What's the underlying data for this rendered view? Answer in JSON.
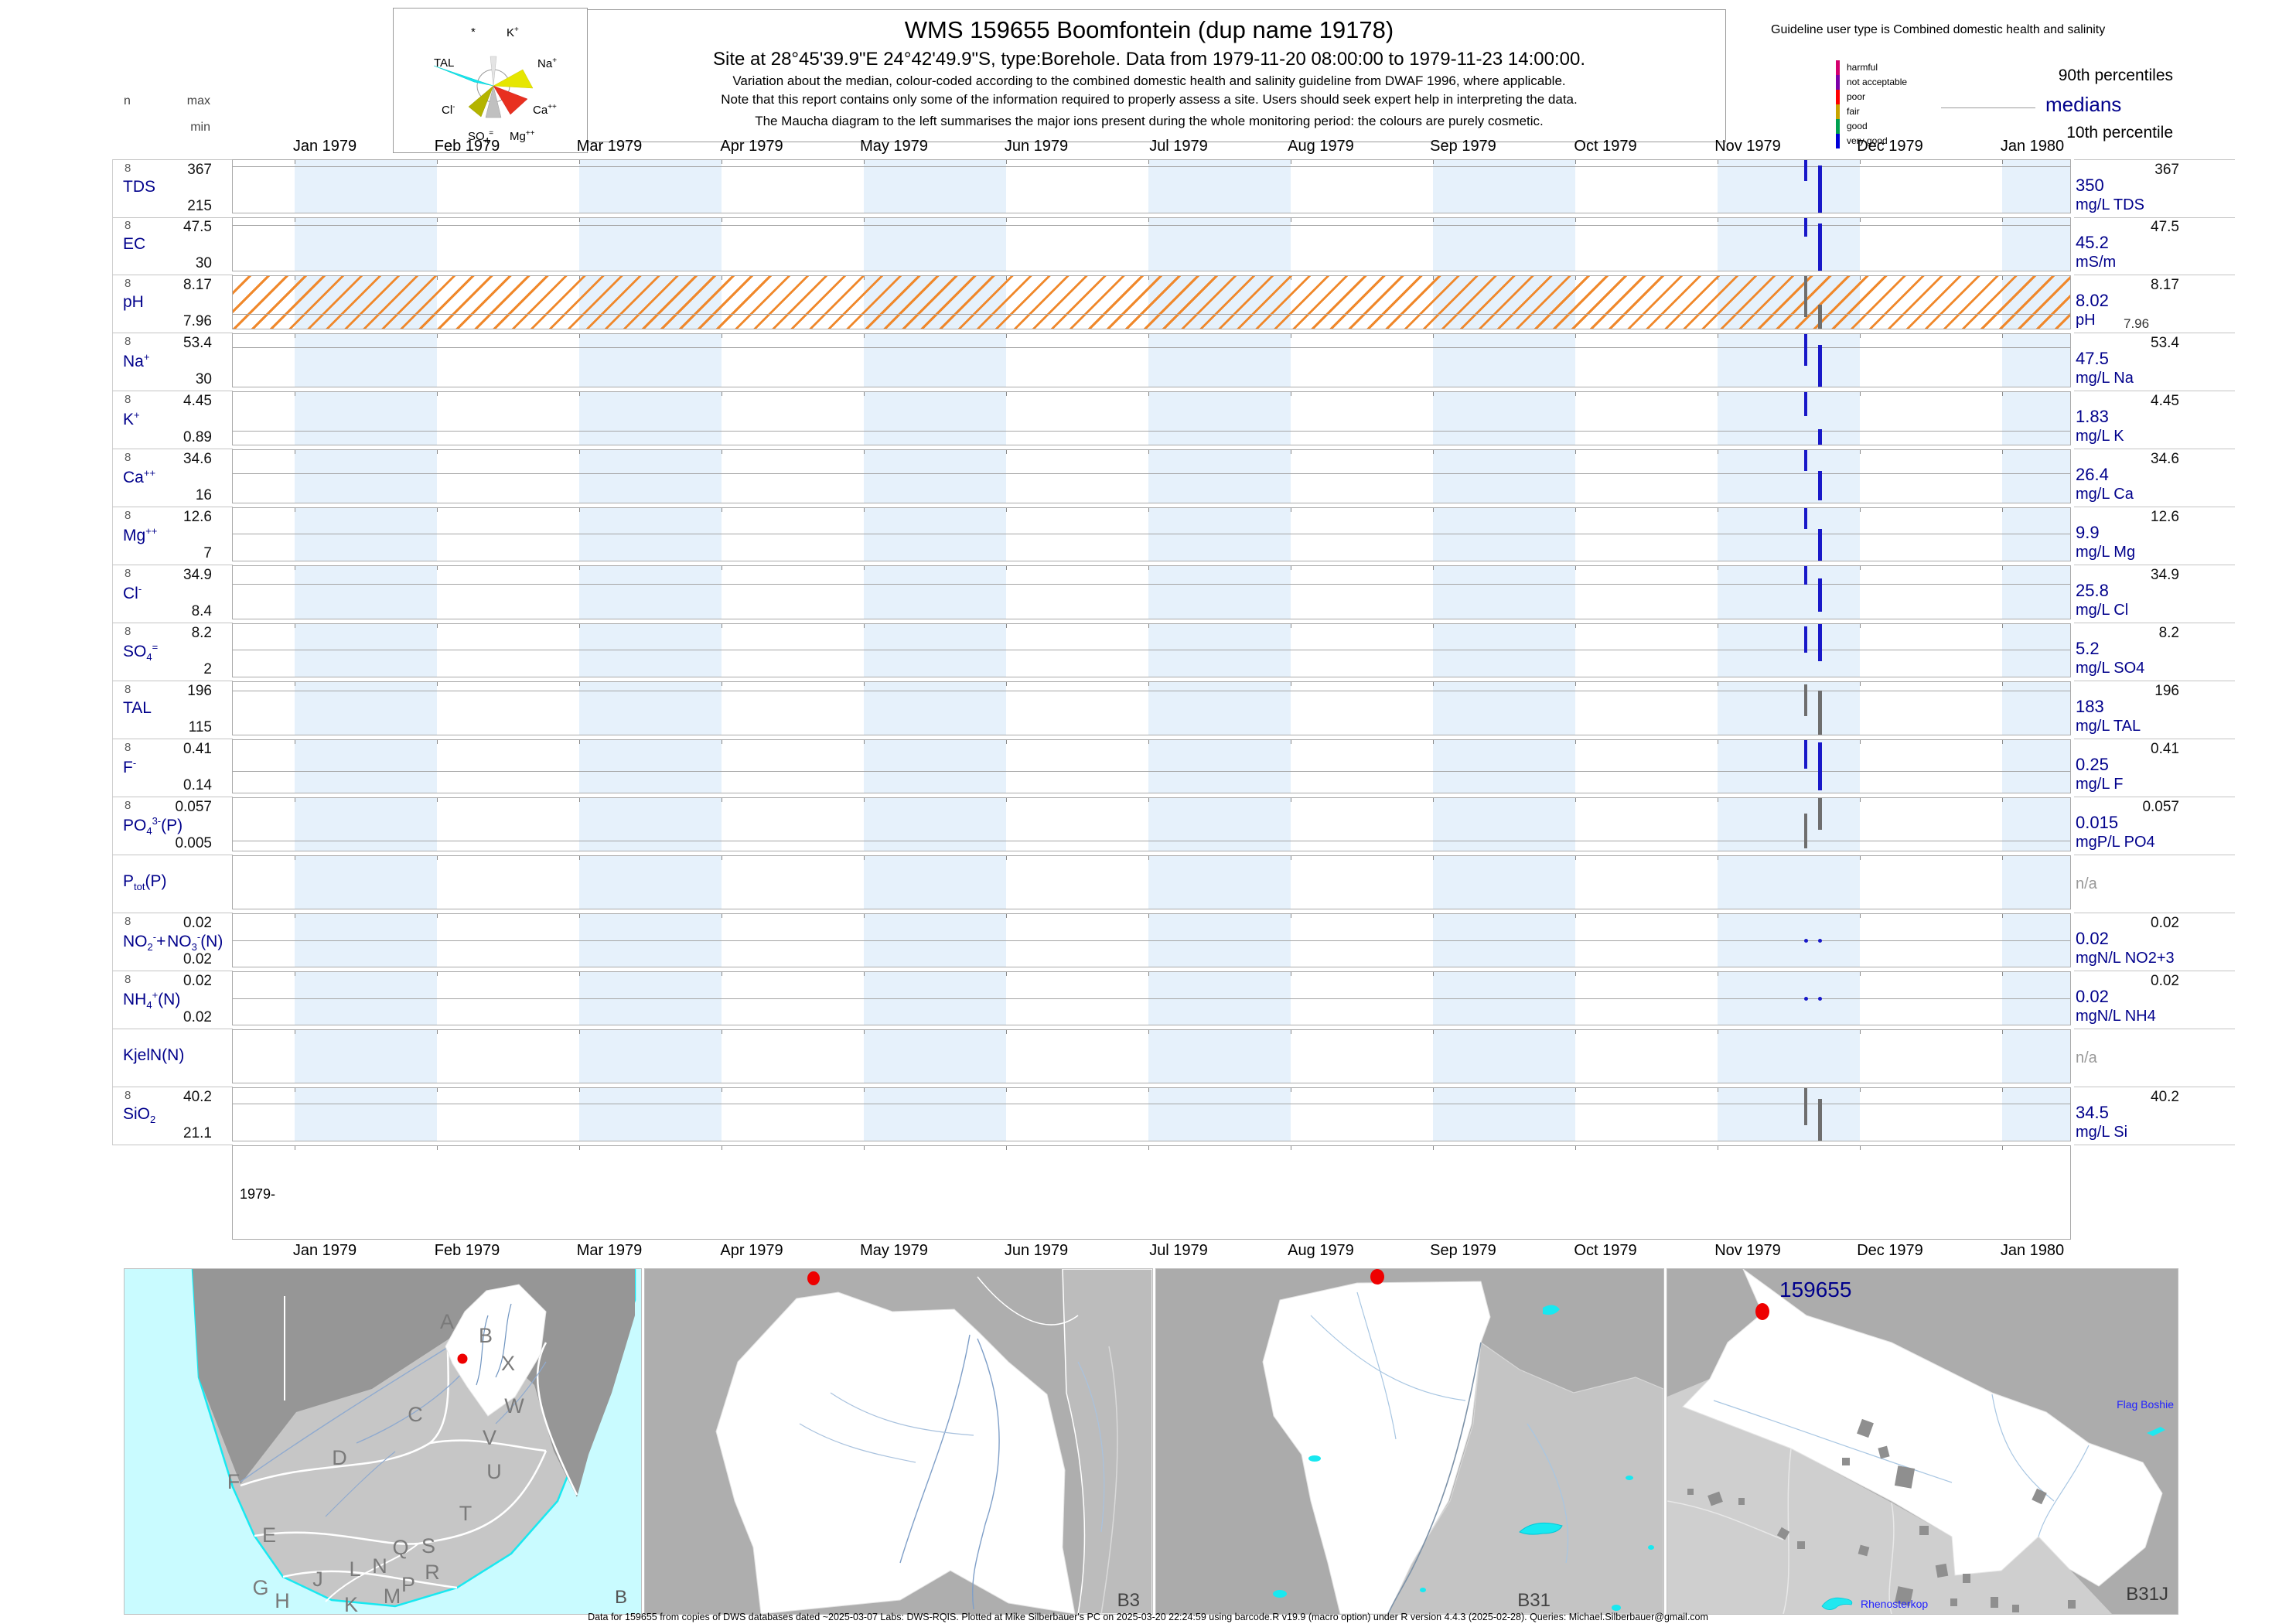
{
  "header": {
    "title": "WMS 159655  Boomfontein (dup name 19178)",
    "site_line": "Site at 28°45'39.9\"E 24°42'49.9\"S, type:Borehole.  Data from 1979-11-20 08:00:00 to 1979-11-23 14:00:00.",
    "note1": "Variation about the median,  colour-coded according to the combined domestic health and salinity guideline from DWAF 1996, where applicable.",
    "note2": "Note that this report contains only some of the information required to properly assess a site. Users should seek expert help in interpreting the data.",
    "note3": "The Maucha diagram to the left summarises the major ions present during the whole monitoring period: the colours are purely cosmetic."
  },
  "stats_header": {
    "n": "n",
    "max": "max",
    "min": "min"
  },
  "maucha": {
    "ions": [
      "*",
      "K<sup>+</sup>",
      "TAL",
      "Na<sup>+</sup>",
      "Cl<sup>-</sup>",
      "Ca<sup>++</sup>",
      "SO<sub>4</sub><sup>=</sup>",
      "Mg<sup>++</sup>"
    ]
  },
  "guideline_legend": {
    "title": "Guideline user type is Combined domestic health and salinity",
    "categories": [
      {
        "label": "harmful",
        "color": "#D4006E"
      },
      {
        "label": "not acceptable",
        "color": "#7C00A8"
      },
      {
        "label": "poor",
        "color": "#FF0000"
      },
      {
        "label": "fair",
        "color": "#C8A400"
      },
      {
        "label": "good",
        "color": "#00A050"
      },
      {
        "label": "very good",
        "color": "#0000D8"
      }
    ]
  },
  "percentile_legend": {
    "p90": "90th percentiles",
    "median": "medians",
    "p10": "10th percentile"
  },
  "chart_data": {
    "type": "timeseries-barcode-report",
    "x_axis": {
      "months": [
        "Jan 1979",
        "Feb 1979",
        "Mar 1979",
        "Apr 1979",
        "May 1979",
        "Jun 1979",
        "Jul 1979",
        "Aug 1979",
        "Sep 1979",
        "Oct 1979",
        "Nov 1979",
        "Dec 1979",
        "Jan 1980"
      ],
      "start_label": "1979-"
    },
    "sampling_period": {
      "from": "1979-11-20 08:00:00",
      "to": "1979-11-23 14:00:00"
    },
    "rows": [
      {
        "param": "TDS",
        "param_html": "TDS",
        "n": "8",
        "max": "367",
        "min": "215",
        "median": "350",
        "unit": "mg/L TDS",
        "median_frac": 0.112,
        "kind": "bars",
        "mark_color": "#1818C8",
        "marks": [
          [
            2032,
            0.0,
            0.4
          ],
          [
            2050,
            0.1,
            1.0
          ]
        ],
        "hatched": false
      },
      {
        "param": "EC",
        "param_html": "EC",
        "n": "8",
        "max": "47.5",
        "min": "30",
        "median": "45.2",
        "unit": "mS/m",
        "median_frac": 0.131,
        "kind": "bars",
        "mark_color": "#1818C8",
        "marks": [
          [
            2032,
            0.0,
            0.35
          ],
          [
            2050,
            0.1,
            1.0
          ]
        ],
        "hatched": false
      },
      {
        "param": "pH",
        "param_html": "pH",
        "n": "8",
        "max": "8.17",
        "min": "7.96",
        "median": "8.02",
        "unit": "pH",
        "right_min": "7.96",
        "median_frac": 0.714,
        "kind": "bars",
        "mark_color": "#6e6e6e",
        "marks": [
          [
            2032,
            0.0,
            0.78
          ],
          [
            2050,
            0.55,
            1.0
          ]
        ],
        "hatched": true
      },
      {
        "param": "Na+",
        "param_html": "Na<sup>+</sup>",
        "n": "8",
        "max": "53.4",
        "min": "30",
        "median": "47.5",
        "unit": "mg/L Na",
        "median_frac": 0.252,
        "kind": "bars",
        "mark_color": "#1818C8",
        "marks": [
          [
            2032,
            0.0,
            0.6
          ],
          [
            2050,
            0.21,
            1.0
          ]
        ],
        "hatched": false
      },
      {
        "param": "K+",
        "param_html": "K<sup>+</sup>",
        "n": "8",
        "max": "4.45",
        "min": "0.89",
        "median": "1.83",
        "unit": "mg/L K",
        "median_frac": 0.736,
        "kind": "bars",
        "mark_color": "#1818C8",
        "marks": [
          [
            2032,
            0.0,
            0.46
          ],
          [
            2050,
            0.7,
            1.0
          ]
        ],
        "hatched": false
      },
      {
        "param": "Ca++",
        "param_html": "Ca<sup>++</sup>",
        "n": "8",
        "max": "34.6",
        "min": "16",
        "median": "26.4",
        "unit": "mg/L Ca",
        "median_frac": 0.441,
        "kind": "bars",
        "mark_color": "#1818C8",
        "marks": [
          [
            2032,
            0.0,
            0.39
          ],
          [
            2050,
            0.39,
            0.96
          ]
        ],
        "hatched": false
      },
      {
        "param": "Mg++",
        "param_html": "Mg<sup>++</sup>",
        "n": "8",
        "max": "12.6",
        "min": "7",
        "median": "9.9",
        "unit": "mg/L Mg",
        "median_frac": 0.482,
        "kind": "bars",
        "mark_color": "#1818C8",
        "marks": [
          [
            2032,
            0.0,
            0.39
          ],
          [
            2050,
            0.39,
            1.0
          ]
        ],
        "hatched": false
      },
      {
        "param": "Cl-",
        "param_html": "Cl<sup>-</sup>",
        "n": "8",
        "max": "34.9",
        "min": "8.4",
        "median": "25.8",
        "unit": "mg/L Cl",
        "median_frac": 0.343,
        "kind": "bars",
        "mark_color": "#1818C8",
        "marks": [
          [
            2032,
            0.0,
            0.36
          ],
          [
            2050,
            0.23,
            0.87
          ]
        ],
        "hatched": false
      },
      {
        "param": "SO4=",
        "param_html": "SO<sub>4</sub><sup>=</sup>",
        "n": "8",
        "max": "8.2",
        "min": "2",
        "median": "5.2",
        "unit": "mg/L SO4",
        "median_frac": 0.484,
        "kind": "bars",
        "mark_color": "#1818C8",
        "marks": [
          [
            2032,
            0.05,
            0.55
          ],
          [
            2050,
            0.0,
            0.7
          ]
        ],
        "hatched": false
      },
      {
        "param": "TAL",
        "param_html": "TAL",
        "n": "8",
        "max": "196",
        "min": "115",
        "median": "183",
        "unit": "mg/L TAL",
        "median_frac": 0.16,
        "kind": "bars",
        "mark_color": "#6e6e6e",
        "marks": [
          [
            2032,
            0.05,
            0.65
          ],
          [
            2050,
            0.16,
            1.0
          ]
        ],
        "hatched": false
      },
      {
        "param": "F-",
        "param_html": "F<sup>-</sup>",
        "n": "8",
        "max": "0.41",
        "min": "0.14",
        "median": "0.25",
        "unit": "mg/L F",
        "median_frac": 0.593,
        "kind": "bars",
        "mark_color": "#1818C8",
        "marks": [
          [
            2032,
            0.0,
            0.55
          ],
          [
            2050,
            0.05,
            0.95
          ]
        ],
        "hatched": false
      },
      {
        "param": "PO43-(P)",
        "param_html": "PO<sub>4</sub><sup>3-</sup>(P)",
        "n": "8",
        "max": "0.057",
        "min": "0.005",
        "median": "0.015",
        "unit": "mgP/L PO4",
        "median_frac": 0.808,
        "kind": "bars",
        "mark_color": "#6e6e6e",
        "marks": [
          [
            2032,
            0.3,
            0.95
          ],
          [
            2050,
            0.0,
            0.6
          ]
        ],
        "hatched": false
      },
      {
        "param": "Ptot(P)",
        "param_html": "P<sub>tot</sub>(P)",
        "n": null,
        "max": null,
        "min": null,
        "median": null,
        "unit": null,
        "na_text": "n/a",
        "median_frac": null,
        "kind": "none",
        "marks": [],
        "hatched": false
      },
      {
        "param": "NO2-+NO3-(N)",
        "param_html": "NO<sub>2</sub><sup>-</sup>+&#8202;NO<sub>3</sub><sup>-</sup>(N)",
        "n": "8",
        "max": "0.02",
        "min": "0.02",
        "median": "0.02",
        "unit": "mgN/L NO2+3",
        "median_frac": 0.5,
        "kind": "dots",
        "mark_color": "#1818C8",
        "marks": [
          [
            2032,
            0.5,
            0.5
          ],
          [
            2050,
            0.5,
            0.5
          ]
        ],
        "hatched": false
      },
      {
        "param": "NH4+(N)",
        "param_html": "NH<sub>4</sub><sup>+</sup>(N)",
        "n": "8",
        "max": "0.02",
        "min": "0.02",
        "median": "0.02",
        "unit": "mgN/L NH4",
        "median_frac": 0.5,
        "kind": "dots",
        "mark_color": "#1818C8",
        "marks": [
          [
            2032,
            0.5,
            0.5
          ],
          [
            2050,
            0.5,
            0.5
          ]
        ],
        "hatched": false
      },
      {
        "param": "KjelN(N)",
        "param_html": "KjelN(N)",
        "n": null,
        "max": null,
        "min": null,
        "median": null,
        "unit": null,
        "na_text": "n/a",
        "median_frac": null,
        "kind": "none",
        "marks": [],
        "hatched": false
      },
      {
        "param": "SiO2",
        "param_html": "SiO<sub>2</sub>",
        "n": "8",
        "max": "40.2",
        "min": "21.1",
        "median": "34.5",
        "unit": "mg/L Si",
        "median_frac": 0.298,
        "kind": "bars",
        "mark_color": "#6e6e6e",
        "marks": [
          [
            2032,
            0.0,
            0.7
          ],
          [
            2050,
            0.2,
            1.0
          ]
        ],
        "hatched": false
      }
    ]
  },
  "maps": {
    "country": {
      "code": "B",
      "regions": [
        "A",
        "B",
        "X",
        "W",
        "C",
        "V",
        "D",
        "U",
        "F",
        "T",
        "E",
        "Q",
        "S",
        "L",
        "N",
        "R",
        "J",
        "P",
        "G",
        "M",
        "H",
        "K"
      ]
    },
    "secondary": {
      "code": "B3"
    },
    "tertiary": {
      "code": "B31"
    },
    "quaternary": {
      "code": "B31J",
      "site_label": "159655",
      "place1": "Flag Boshie",
      "place2": "Rhenosterkop"
    }
  },
  "footer": "Data for 159655 from copies of DWS databases dated ~2025-03-07 Labs: DWS-RQIS. Plotted at Mike Silberbauer's PC on 2025-03-20 22:24:59 using barcode.R v19.9 (macro option) under R version 4.4.3 (2025-02-28). Queries: Michael.Silberbauer@gmail.com"
}
